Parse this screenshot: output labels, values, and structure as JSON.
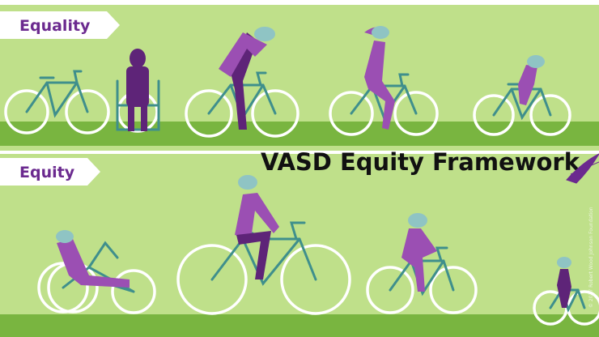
{
  "panels": {
    "top_label": "Equality",
    "bottom_label": "Equity"
  },
  "title": "VASD Equity Framework",
  "credit": "© 2017 Robert Wood Johnson Foundation"
}
